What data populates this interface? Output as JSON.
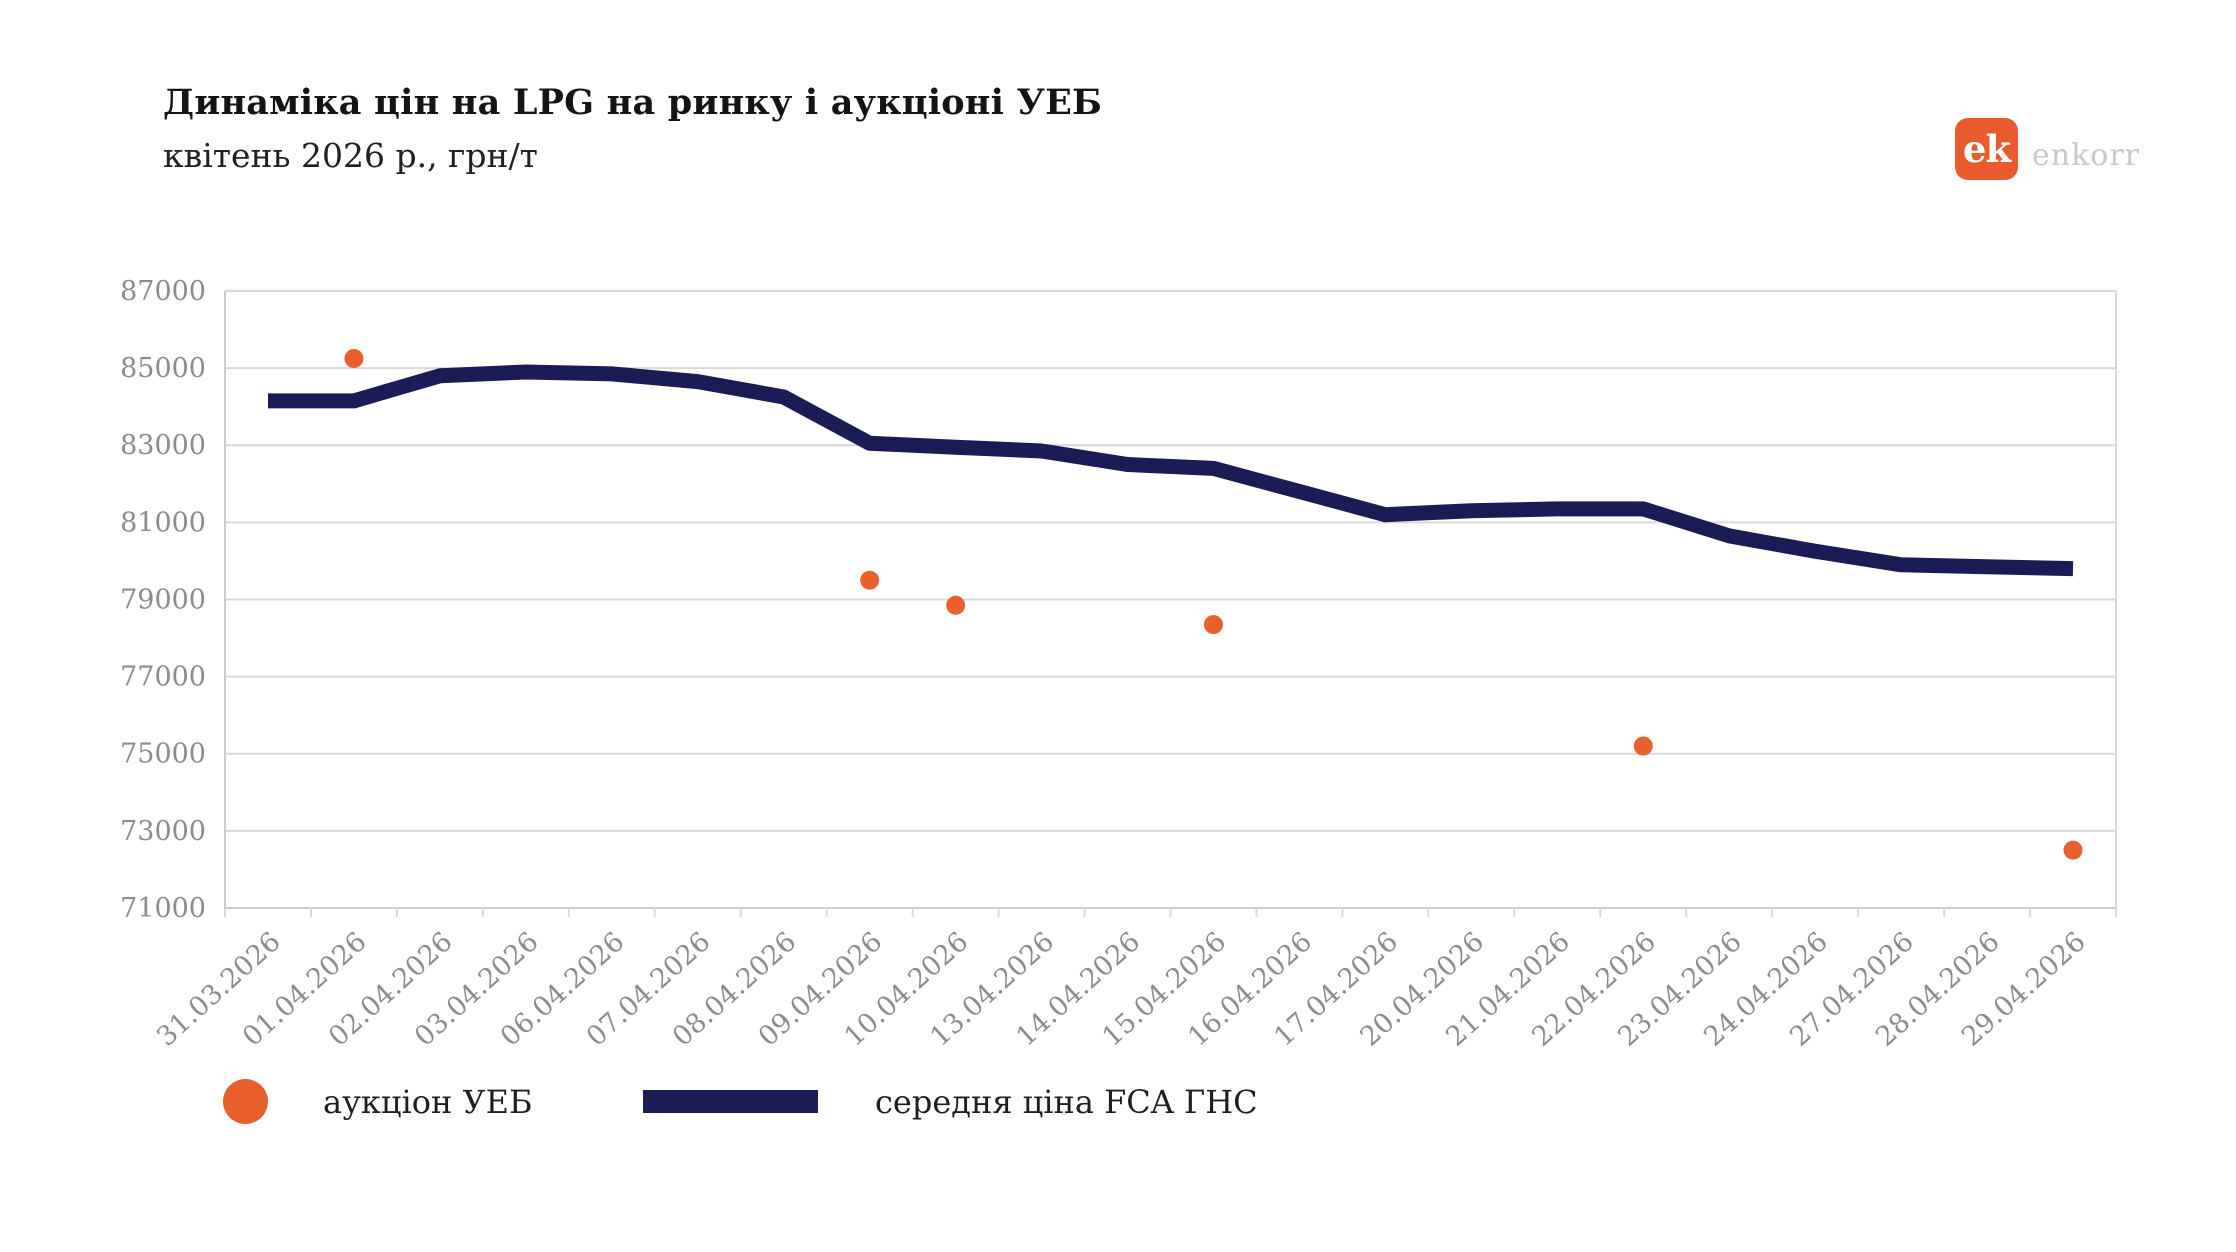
{
  "header": {
    "title": "Динаміка цін на LPG на ринку і аукціоні УЕБ",
    "subtitle": "квітень 2026 р., грн/т"
  },
  "logo": {
    "mark": "ek",
    "wordmark": "enkorr"
  },
  "colors": {
    "accent_orange": "#e8602b",
    "navy": "#1b1b55",
    "logo_orange": "#e75b2d",
    "grid": "#d9d9d9",
    "axis_line": "#cccccc",
    "axis_text": "#8c8c8c",
    "title_text": "#141414",
    "legend_text": "#1f1f1f",
    "wordmark_gray": "#c9c9c9",
    "background": "#ffffff"
  },
  "chart_data": {
    "type": "line",
    "title": "Динаміка цін на LPG на ринку і аукціоні УЕБ",
    "subtitle": "квітень 2026 р., грн/т",
    "ylabel": "грн/т",
    "categories": [
      "31.03.2026",
      "01.04.2026",
      "02.04.2026",
      "03.04.2026",
      "06.04.2026",
      "07.04.2026",
      "08.04.2026",
      "09.04.2026",
      "10.04.2026",
      "13.04.2026",
      "14.04.2026",
      "15.04.2026",
      "16.04.2026",
      "17.04.2026",
      "20.04.2026",
      "21.04.2026",
      "22.04.2026",
      "23.04.2026",
      "24.04.2026",
      "27.04.2026",
      "28.04.2026",
      "29.04.2026"
    ],
    "series": [
      {
        "name": "аукціон УЕБ",
        "type": "scatter",
        "color": "#e8602b",
        "values": [
          null,
          85250,
          null,
          null,
          null,
          null,
          null,
          79500,
          78850,
          null,
          null,
          78350,
          null,
          null,
          null,
          null,
          75200,
          null,
          null,
          null,
          null,
          72500
        ]
      },
      {
        "name": "середня ціна FCA ГНС",
        "type": "line",
        "color": "#1b1b55",
        "values": [
          84150,
          84150,
          84800,
          84900,
          84850,
          84650,
          84250,
          83050,
          82950,
          82850,
          82500,
          82400,
          81800,
          81200,
          81300,
          81350,
          81350,
          80650,
          80250,
          79900,
          79850,
          79800
        ]
      }
    ],
    "ylim": [
      71000,
      87000
    ],
    "yticks": [
      87000,
      85000,
      83000,
      81000,
      79000,
      77000,
      75000,
      73000,
      71000
    ],
    "grid": "horizontal",
    "legend_position": "bottom-left"
  }
}
